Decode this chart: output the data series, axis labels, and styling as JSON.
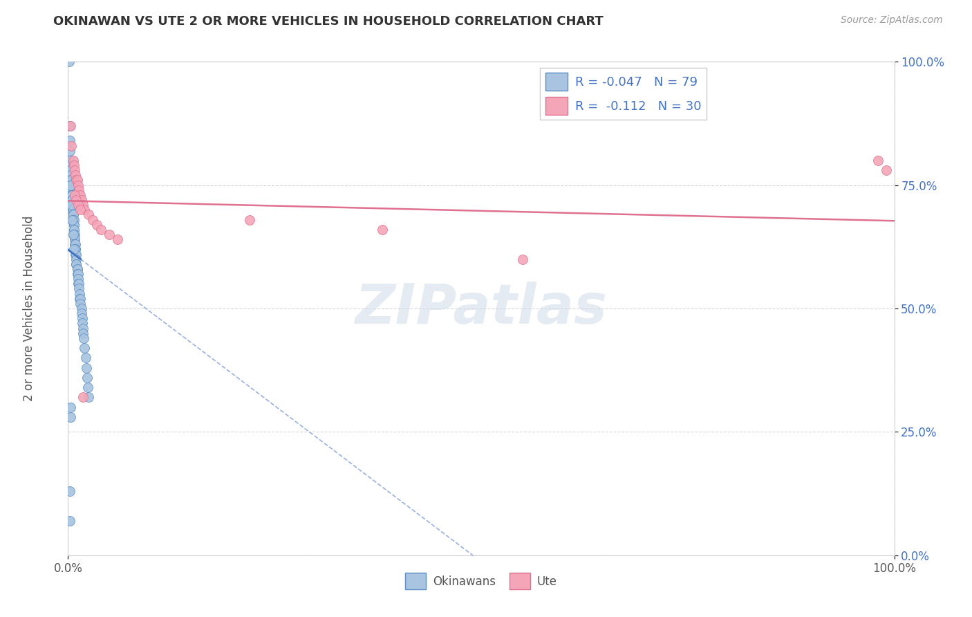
{
  "title": "OKINAWAN VS UTE 2 OR MORE VEHICLES IN HOUSEHOLD CORRELATION CHART",
  "source": "Source: ZipAtlas.com",
  "ylabel": "2 or more Vehicles in Household",
  "xlim": [
    0.0,
    1.0
  ],
  "ylim": [
    0.0,
    1.0
  ],
  "xtick_positions": [
    0.0,
    1.0
  ],
  "xtick_labels": [
    "0.0%",
    "100.0%"
  ],
  "ytick_positions": [
    0.0,
    0.25,
    0.5,
    0.75,
    1.0
  ],
  "ytick_labels": [
    "0.0%",
    "25.0%",
    "50.0%",
    "75.0%",
    "100.0%"
  ],
  "okinawan_R": -0.047,
  "okinawan_N": 79,
  "ute_R": -0.112,
  "ute_N": 30,
  "okinawan_color": "#a8c4e0",
  "okinawan_edge_color": "#5b8ec4",
  "ute_color": "#f4a6b8",
  "ute_edge_color": "#e07090",
  "okinawan_line_color": "#4472c4",
  "ute_line_color": "#e07090",
  "text_color": "#4472c4",
  "label_color": "#555555",
  "tick_color": "#4472c4",
  "background_color": "#ffffff",
  "grid_color": "#cccccc",
  "watermark_color": "#ccd9e8",
  "legend_edge_color": "#cccccc",
  "marker_size": 100,
  "okinawan_x": [
    0.001,
    0.002,
    0.002,
    0.002,
    0.003,
    0.003,
    0.003,
    0.003,
    0.003,
    0.004,
    0.004,
    0.004,
    0.004,
    0.004,
    0.004,
    0.005,
    0.005,
    0.005,
    0.005,
    0.005,
    0.005,
    0.006,
    0.006,
    0.006,
    0.006,
    0.006,
    0.006,
    0.007,
    0.007,
    0.007,
    0.007,
    0.007,
    0.007,
    0.008,
    0.008,
    0.008,
    0.008,
    0.009,
    0.009,
    0.009,
    0.009,
    0.01,
    0.01,
    0.01,
    0.01,
    0.011,
    0.011,
    0.011,
    0.012,
    0.012,
    0.012,
    0.013,
    0.013,
    0.014,
    0.014,
    0.015,
    0.015,
    0.016,
    0.016,
    0.017,
    0.017,
    0.018,
    0.018,
    0.019,
    0.02,
    0.021,
    0.022,
    0.023,
    0.024,
    0.025,
    0.003,
    0.004,
    0.005,
    0.006,
    0.007,
    0.003,
    0.003,
    0.002,
    0.002
  ],
  "okinawan_y": [
    1.0,
    0.87,
    0.84,
    0.82,
    0.8,
    0.79,
    0.78,
    0.77,
    0.76,
    0.76,
    0.75,
    0.75,
    0.74,
    0.73,
    0.73,
    0.73,
    0.72,
    0.72,
    0.71,
    0.71,
    0.7,
    0.7,
    0.7,
    0.69,
    0.69,
    0.68,
    0.68,
    0.68,
    0.67,
    0.67,
    0.66,
    0.66,
    0.65,
    0.65,
    0.64,
    0.64,
    0.63,
    0.63,
    0.62,
    0.62,
    0.61,
    0.61,
    0.6,
    0.59,
    0.59,
    0.58,
    0.58,
    0.57,
    0.57,
    0.56,
    0.55,
    0.55,
    0.54,
    0.53,
    0.52,
    0.52,
    0.51,
    0.5,
    0.49,
    0.48,
    0.47,
    0.46,
    0.45,
    0.44,
    0.42,
    0.4,
    0.38,
    0.36,
    0.34,
    0.32,
    0.75,
    0.71,
    0.68,
    0.65,
    0.62,
    0.3,
    0.28,
    0.13,
    0.07
  ],
  "ute_x": [
    0.003,
    0.004,
    0.006,
    0.007,
    0.008,
    0.009,
    0.01,
    0.011,
    0.012,
    0.013,
    0.015,
    0.016,
    0.018,
    0.02,
    0.025,
    0.03,
    0.035,
    0.04,
    0.05,
    0.06,
    0.22,
    0.38,
    0.55,
    0.99,
    0.98,
    0.008,
    0.01,
    0.012,
    0.015,
    0.018
  ],
  "ute_y": [
    0.87,
    0.83,
    0.8,
    0.79,
    0.78,
    0.77,
    0.76,
    0.76,
    0.75,
    0.74,
    0.73,
    0.72,
    0.71,
    0.7,
    0.69,
    0.68,
    0.67,
    0.66,
    0.65,
    0.64,
    0.68,
    0.66,
    0.6,
    0.78,
    0.8,
    0.73,
    0.72,
    0.71,
    0.7,
    0.32
  ]
}
